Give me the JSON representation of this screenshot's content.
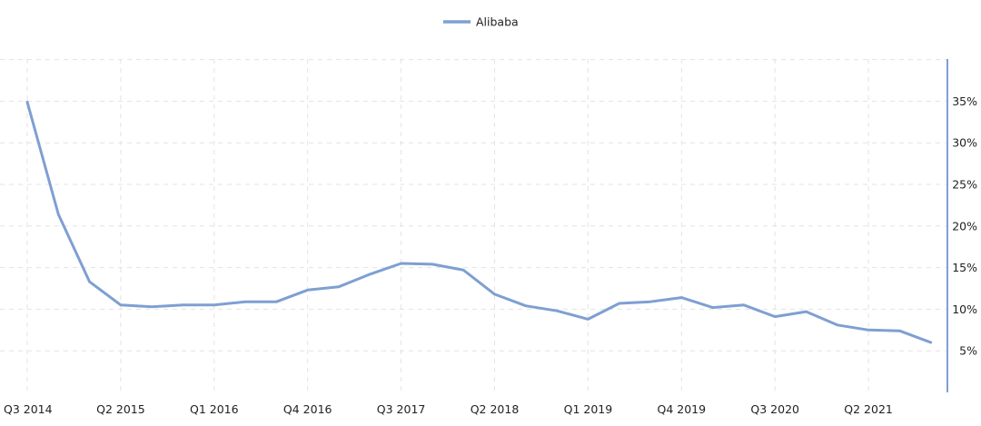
{
  "chart_data": {
    "type": "line",
    "title": "",
    "xlabel": "",
    "ylabel": "",
    "x": [
      "Q3 2014",
      "Q4 2014",
      "Q1 2015",
      "Q2 2015",
      "Q3 2015",
      "Q4 2015",
      "Q1 2016",
      "Q2 2016",
      "Q3 2016",
      "Q4 2016",
      "Q1 2017",
      "Q2 2017",
      "Q3 2017",
      "Q4 2017",
      "Q1 2018",
      "Q2 2018",
      "Q3 2018",
      "Q4 2018",
      "Q1 2019",
      "Q2 2019",
      "Q3 2019",
      "Q4 2019",
      "Q1 2020",
      "Q2 2020",
      "Q3 2020",
      "Q4 2020",
      "Q1 2021",
      "Q2 2021",
      "Q3 2021",
      "Q4 2021"
    ],
    "x_tick_labels": [
      "Q3 2014",
      "Q2 2015",
      "Q1 2016",
      "Q4 2016",
      "Q3 2017",
      "Q2 2018",
      "Q1 2019",
      "Q4 2019",
      "Q3 2020",
      "Q2 2021"
    ],
    "series": [
      {
        "name": "Alibaba",
        "color": "#7f9fd2",
        "values": [
          34.9,
          21.4,
          13.3,
          10.5,
          10.3,
          10.5,
          10.5,
          10.9,
          10.9,
          12.3,
          12.7,
          14.2,
          15.5,
          15.4,
          14.7,
          11.8,
          10.4,
          9.8,
          8.8,
          10.7,
          10.9,
          11.4,
          10.2,
          10.5,
          9.1,
          9.7,
          8.1,
          7.5,
          7.4,
          6.0
        ]
      }
    ],
    "y_tick_labels": [
      "5%",
      "10%",
      "15%",
      "20%",
      "25%",
      "30%",
      "35%"
    ],
    "y_ticks": [
      5,
      10,
      15,
      20,
      25,
      30,
      35
    ],
    "ylim": [
      0,
      40
    ],
    "y_axis_side": "right",
    "grid": true,
    "legend": {
      "position": "top-center",
      "label": "Alibaba"
    }
  }
}
